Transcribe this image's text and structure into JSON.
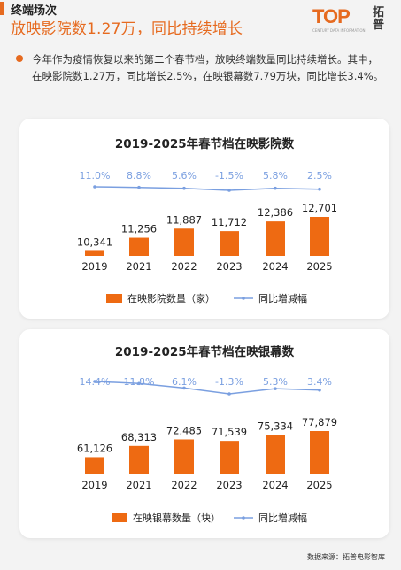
{
  "header": {
    "label": "终端场次",
    "title": "放映影院数1.27万，同比持续增长"
  },
  "logo": {
    "mark": "TOP",
    "cn": "拓普",
    "sub": "CENTURY DATA INFORMATION"
  },
  "intro": {
    "text": "今年作为疫情恢复以来的第二个春节档，放映终端数量同比持续增长。其中，在映影院数1.27万，同比增长2.5%，在映银幕数7.79万块，同比增长3.4%。"
  },
  "source": "数据来源：拓普电影智库",
  "colors": {
    "bar": "#ee6a12",
    "line": "#7a9fe0",
    "accent": "#e66a1f"
  },
  "chart_data": [
    {
      "type": "bar",
      "title": "2019-2025年春节档在映影院数",
      "categories": [
        "2019",
        "2021",
        "2022",
        "2023",
        "2024",
        "2025"
      ],
      "series": [
        {
          "name": "在映影院数量（家）",
          "values": [
            10341,
            11256,
            11887,
            11712,
            12386,
            12701
          ],
          "labels": [
            "10,341",
            "11,256",
            "11,887",
            "11,712",
            "12,386",
            "12,701"
          ]
        },
        {
          "name": "同比增减幅",
          "type": "line",
          "values": [
            11.0,
            8.8,
            5.6,
            -1.5,
            5.8,
            2.5
          ],
          "labels": [
            "11.0%",
            "8.8%",
            "5.6%",
            "-1.5%",
            "5.8%",
            "2.5%"
          ]
        }
      ],
      "legend": "bottom"
    },
    {
      "type": "bar",
      "title": "2019-2025年春节档在映银幕数",
      "categories": [
        "2019",
        "2021",
        "2022",
        "2023",
        "2024",
        "2025"
      ],
      "series": [
        {
          "name": "在映银幕数量（块）",
          "values": [
            61126,
            68313,
            72485,
            71539,
            75334,
            77879
          ],
          "labels": [
            "61,126",
            "68,313",
            "72,485",
            "71,539",
            "75,334",
            "77,879"
          ]
        },
        {
          "name": "同比增减幅",
          "type": "line",
          "values": [
            14.4,
            11.8,
            6.1,
            -1.3,
            5.3,
            3.4
          ],
          "labels": [
            "14.4%",
            "11.8%",
            "6.1%",
            "-1.3%",
            "5.3%",
            "3.4%"
          ]
        }
      ],
      "legend": "bottom"
    }
  ]
}
